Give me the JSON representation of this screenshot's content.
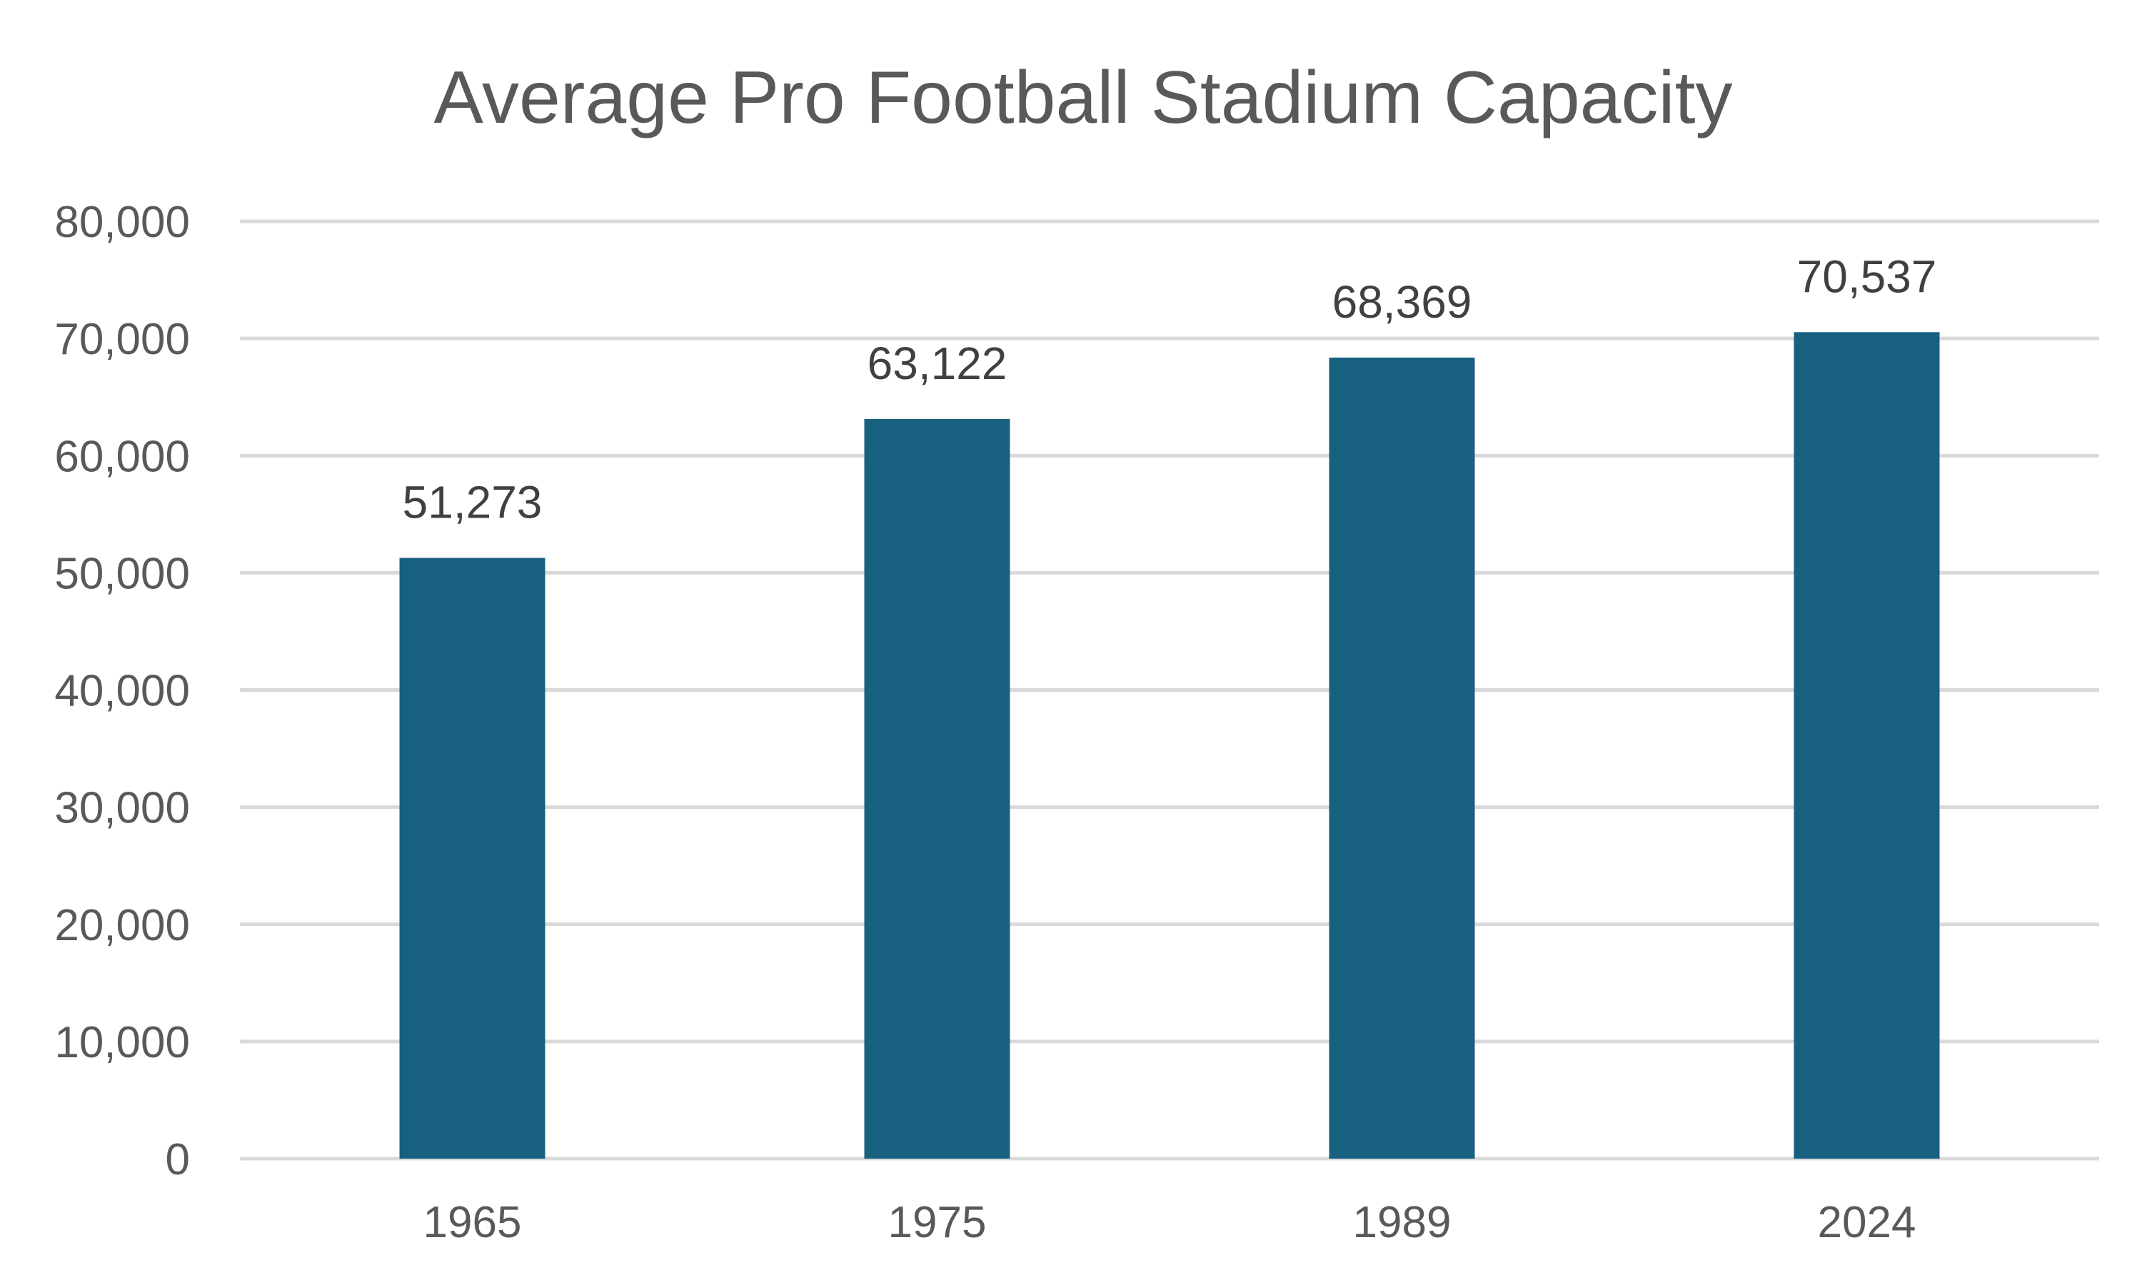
{
  "chart_data": {
    "type": "bar",
    "title": "Average Pro Football Stadium Capacity",
    "xlabel": "",
    "ylabel": "",
    "categories": [
      "1965",
      "1975",
      "1989",
      "2024"
    ],
    "values": [
      51273,
      63122,
      68369,
      70537
    ],
    "data_labels": [
      "51,273",
      "63,122",
      "68,369",
      "70,537"
    ],
    "ylim": [
      0,
      80000
    ],
    "yticks": [
      0,
      10000,
      20000,
      30000,
      40000,
      50000,
      60000,
      70000,
      80000
    ],
    "ytick_labels": [
      "0",
      "10,000",
      "20,000",
      "30,000",
      "40,000",
      "50,000",
      "60,000",
      "70,000",
      "80,000"
    ],
    "grid": true,
    "legend": "none",
    "bar_color": "#186080"
  }
}
